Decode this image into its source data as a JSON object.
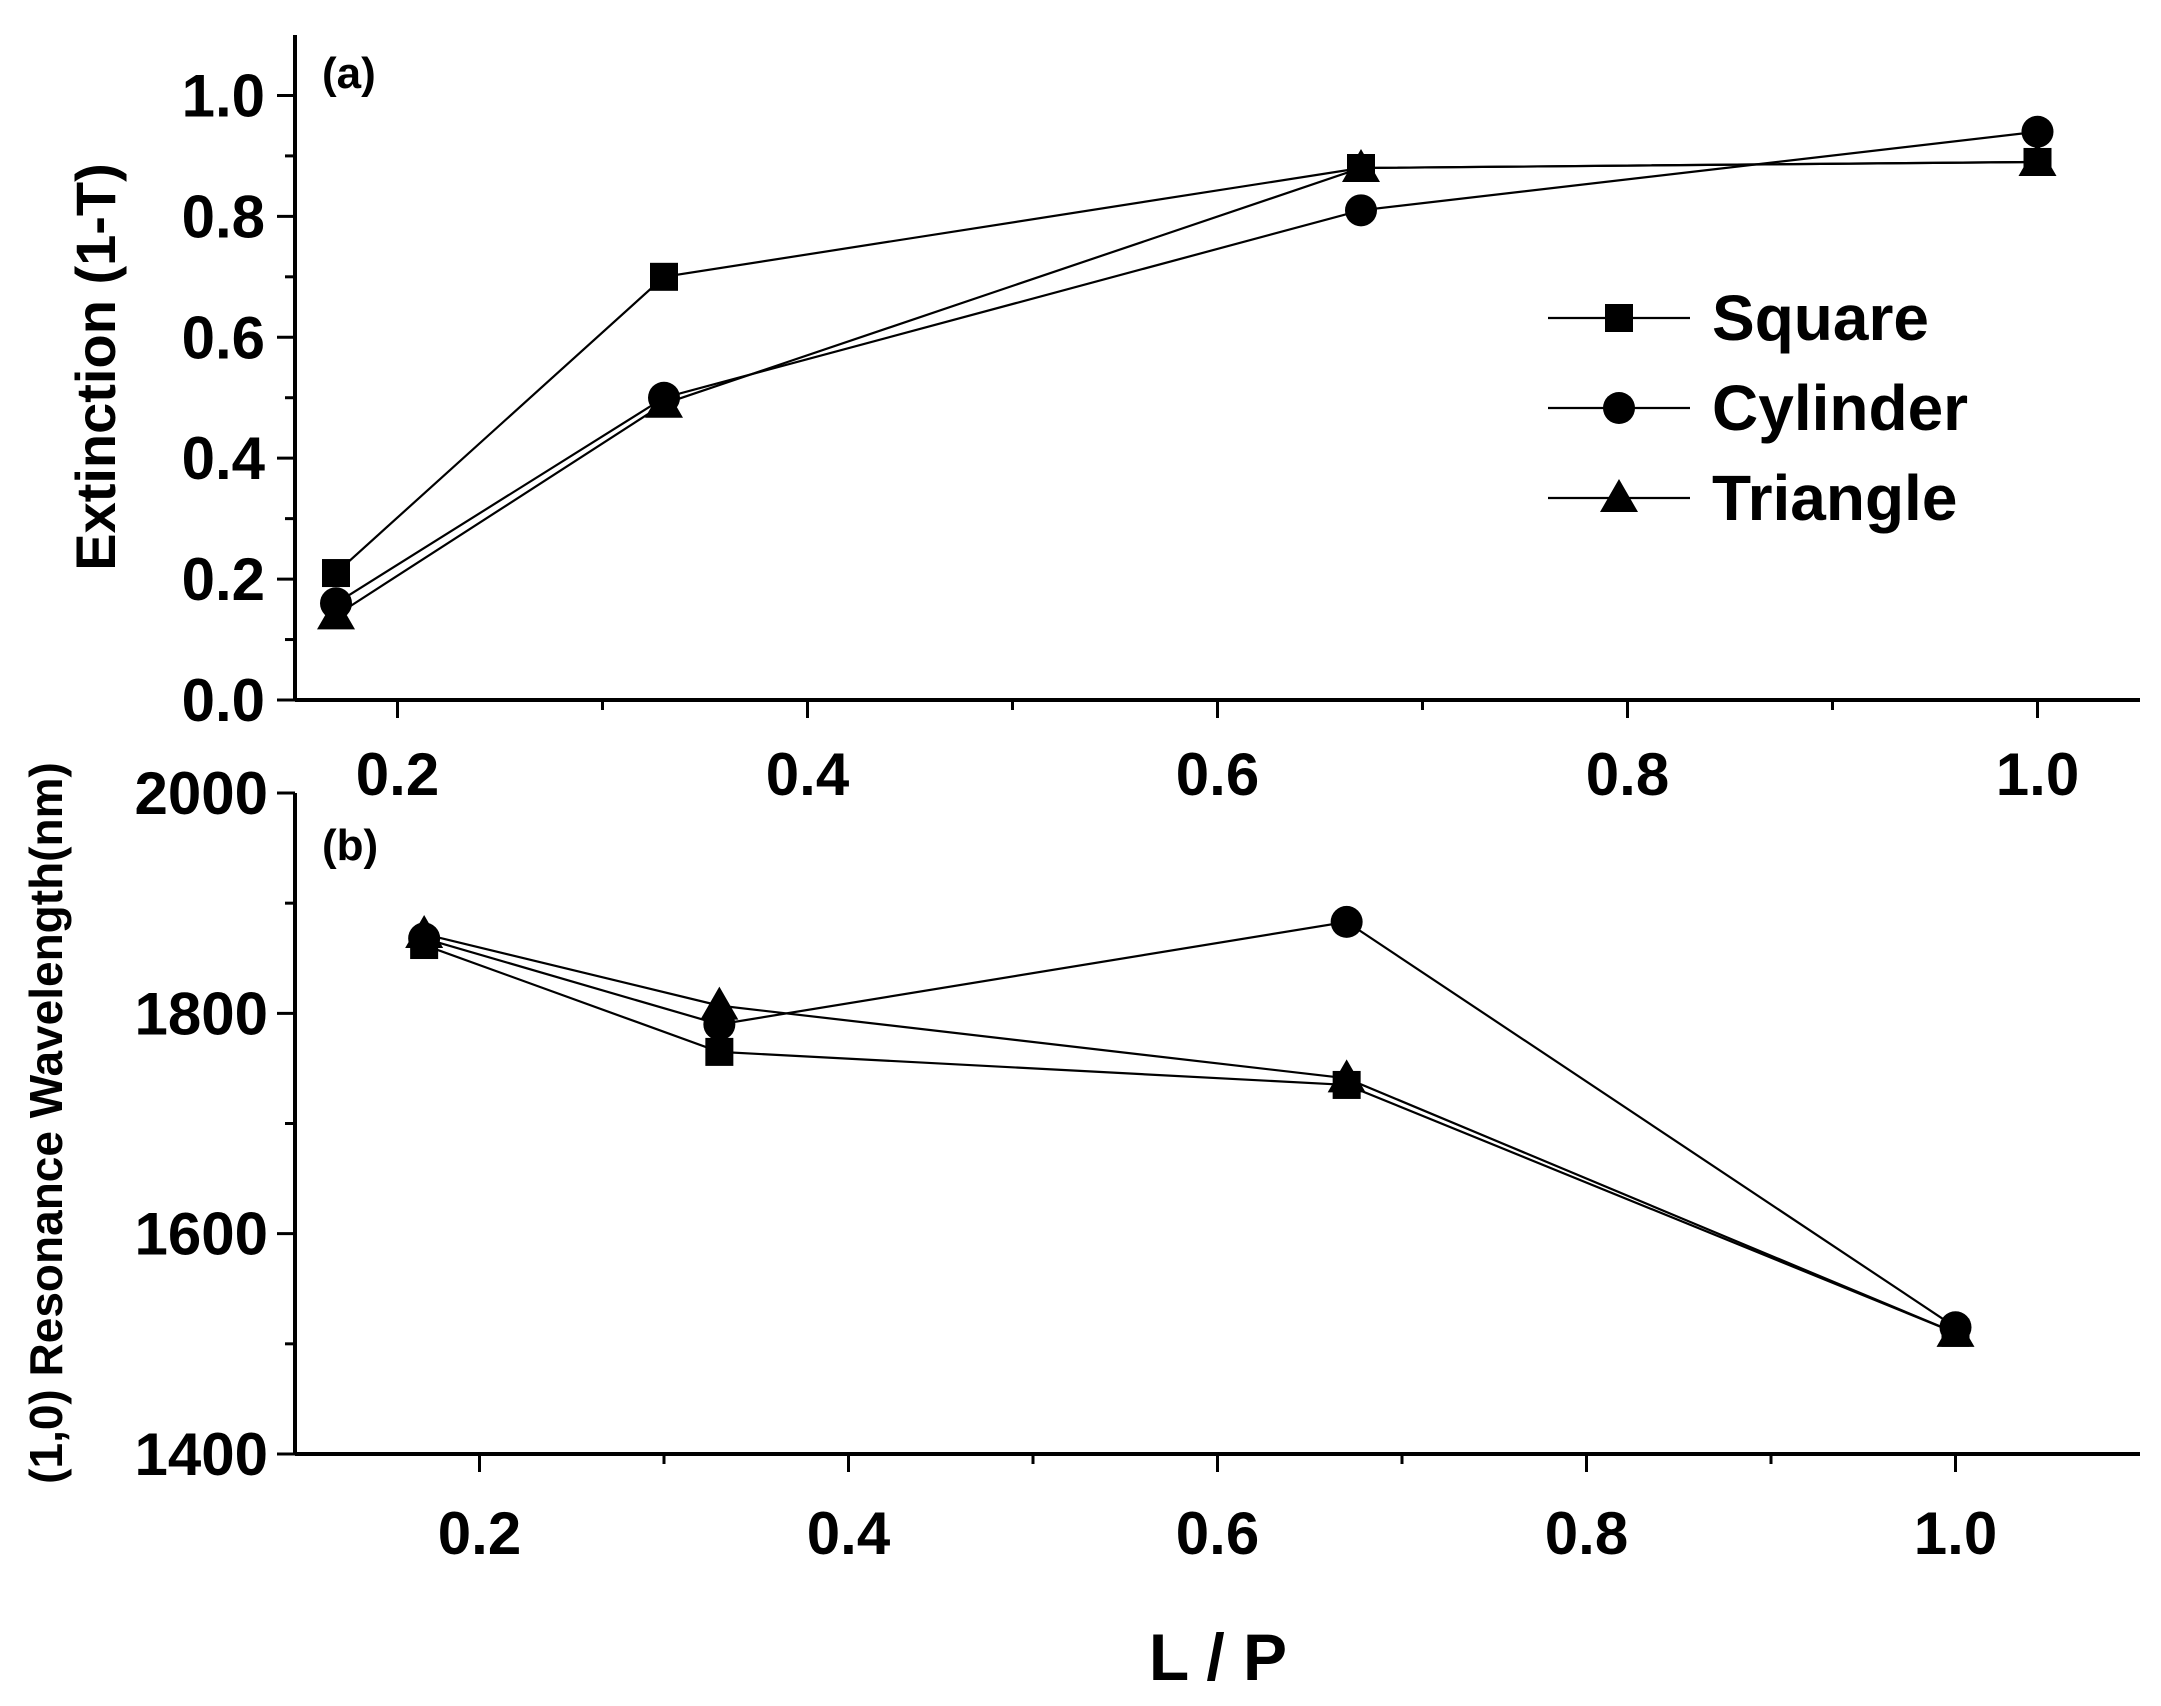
{
  "chart_data": [
    {
      "id": "a",
      "type": "line",
      "panel_label": "(a)",
      "title": "",
      "xlabel": "",
      "ylabel": "Extinction (1-T)",
      "xlim": [
        0.15,
        1.05
      ],
      "ylim": [
        0.0,
        1.1
      ],
      "xticks": [
        0.2,
        0.4,
        0.6,
        0.8,
        1.0
      ],
      "xtick_labels": [
        "0.2",
        "0.4",
        "0.6",
        "0.8",
        "1.0"
      ],
      "yticks": [
        0.0,
        0.2,
        0.4,
        0.6,
        0.8,
        1.0
      ],
      "ytick_labels": [
        "0.0",
        "0.2",
        "0.4",
        "0.6",
        "0.8",
        "1.0"
      ],
      "x": [
        0.17,
        0.33,
        0.67,
        1.0
      ],
      "series": [
        {
          "name": "Square",
          "marker": "square",
          "values": [
            0.21,
            0.7,
            0.88,
            0.89
          ]
        },
        {
          "name": "Cylinder",
          "marker": "circle",
          "values": [
            0.16,
            0.5,
            0.81,
            0.94
          ]
        },
        {
          "name": "Triangle",
          "marker": "triangle",
          "values": [
            0.14,
            0.49,
            0.88,
            0.89
          ]
        }
      ],
      "legend": {
        "position": "right",
        "entries": [
          "Square",
          "Cylinder",
          "Triangle"
        ]
      }
    },
    {
      "id": "b",
      "type": "line",
      "panel_label": "(b)",
      "title": "",
      "xlabel": "L / P",
      "ylabel": "(1,0) Resonance Wavelength(nm)",
      "xlim": [
        0.1,
        1.1
      ],
      "ylim": [
        1400,
        2000
      ],
      "xticks": [
        0.2,
        0.4,
        0.6,
        0.8,
        1.0
      ],
      "xtick_labels": [
        "0.2",
        "0.4",
        "0.6",
        "0.8",
        "1.0"
      ],
      "yticks": [
        1400,
        1600,
        1800,
        2000
      ],
      "ytick_labels": [
        "1400",
        "1600",
        "1800",
        "2000"
      ],
      "x": [
        0.17,
        0.33,
        0.67,
        1.0
      ],
      "series": [
        {
          "name": "Square",
          "marker": "square",
          "values": [
            1862,
            1765,
            1735,
            1510
          ]
        },
        {
          "name": "Cylinder",
          "marker": "circle",
          "values": [
            1868,
            1790,
            1883,
            1515
          ]
        },
        {
          "name": "Triangle",
          "marker": "triangle",
          "values": [
            1872,
            1807,
            1741,
            1510
          ]
        }
      ]
    }
  ]
}
